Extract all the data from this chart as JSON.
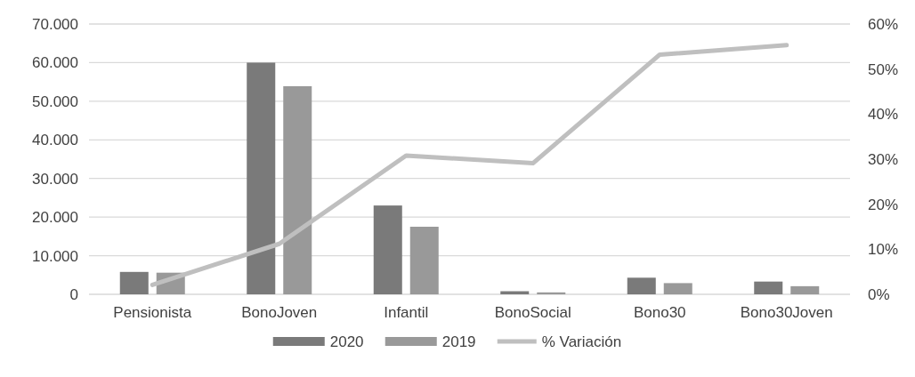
{
  "chart_data": {
    "type": "bar",
    "categories": [
      "Pensionista",
      "BonoJoven",
      "Infantil",
      "BonoSocial",
      "Bono30",
      "Bono30Joven"
    ],
    "series": [
      {
        "name": "2020",
        "color": "#7a7a7a",
        "values": [
          5800,
          60000,
          23000,
          800,
          4300,
          3300
        ]
      },
      {
        "name": "2019",
        "color": "#999999",
        "values": [
          5600,
          53900,
          17500,
          500,
          2900,
          2100
        ]
      },
      {
        "name": "% Variación",
        "type": "line",
        "axis": "y2",
        "color": "#bfbfbf",
        "values": [
          2.1,
          11.2,
          30.8,
          29.1,
          53.2,
          55.3
        ]
      }
    ],
    "ylim": [
      0,
      70000
    ],
    "yticks": [
      {
        "value": 0,
        "label": "0"
      },
      {
        "value": 10000,
        "label": "10.000"
      },
      {
        "value": 20000,
        "label": "20.000"
      },
      {
        "value": 30000,
        "label": "30.000"
      },
      {
        "value": 40000,
        "label": "40.000"
      },
      {
        "value": 50000,
        "label": "50.000"
      },
      {
        "value": 60000,
        "label": "60.000"
      },
      {
        "value": 70000,
        "label": "70.000"
      }
    ],
    "y2lim": [
      0,
      60
    ],
    "y2ticks": [
      {
        "value": 0,
        "label": "0%"
      },
      {
        "value": 10,
        "label": "10%"
      },
      {
        "value": 20,
        "label": "20%"
      },
      {
        "value": 30,
        "label": "30%"
      },
      {
        "value": 40,
        "label": "40%"
      },
      {
        "value": 50,
        "label": "50%"
      },
      {
        "value": 60,
        "label": "60%"
      }
    ],
    "grid": "y",
    "legend": "bottom",
    "marker": "none",
    "line_style": "solid"
  }
}
